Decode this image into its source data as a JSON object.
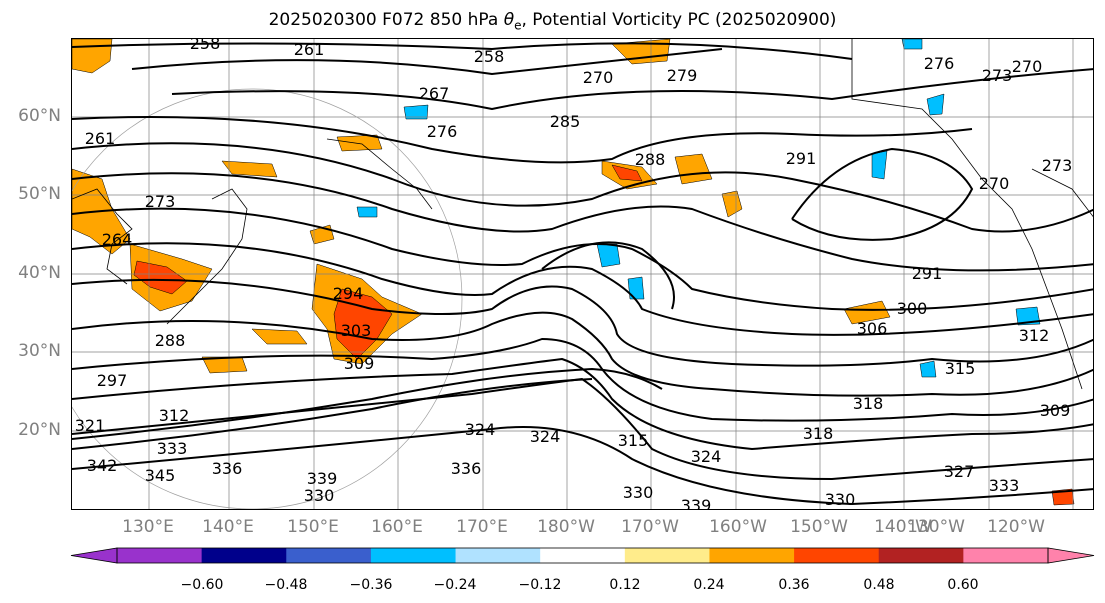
{
  "title": "2025020300 F072 850 hPa θe, Potential Vorticity PC (2025020900)",
  "lat_labels": [
    "60°N",
    "50°N",
    "40°N",
    "30°N",
    "20°N"
  ],
  "lon_labels": [
    "130°E",
    "140°E",
    "150°E",
    "160°E",
    "170°E",
    "180°W",
    "170°W",
    "160°W",
    "150°W",
    "140°W",
    "130°W",
    "120°W"
  ],
  "contour_labels": [
    "258",
    "261",
    "258",
    "270",
    "279",
    "276",
    "273",
    "270",
    "267",
    "276",
    "285",
    "288",
    "291",
    "261",
    "273",
    "264",
    "294",
    "303",
    "309",
    "288",
    "297",
    "312",
    "321",
    "333",
    "345",
    "342",
    "336",
    "330",
    "339",
    "336",
    "324",
    "324",
    "315",
    "324",
    "330",
    "339",
    "330",
    "318",
    "318",
    "315",
    "300",
    "306",
    "291",
    "309",
    "327",
    "333",
    "312",
    "270",
    "273"
  ],
  "colorbar": {
    "ticks": [
      "−0.60",
      "−0.48",
      "−0.36",
      "−0.24",
      "−0.12",
      "0.12",
      "0.24",
      "0.36",
      "0.48",
      "0.60"
    ],
    "colors": [
      "#9932cc",
      "#00008b",
      "#3a5fcd",
      "#00bfff",
      "#b0e2ff",
      "#ffffff",
      "#ffec8b",
      "#ffa500",
      "#ff4500",
      "#b22222",
      "#ff82ab"
    ]
  },
  "colors": {
    "contour": "#000000",
    "grid": "#808080",
    "tick_label": "#808080"
  }
}
